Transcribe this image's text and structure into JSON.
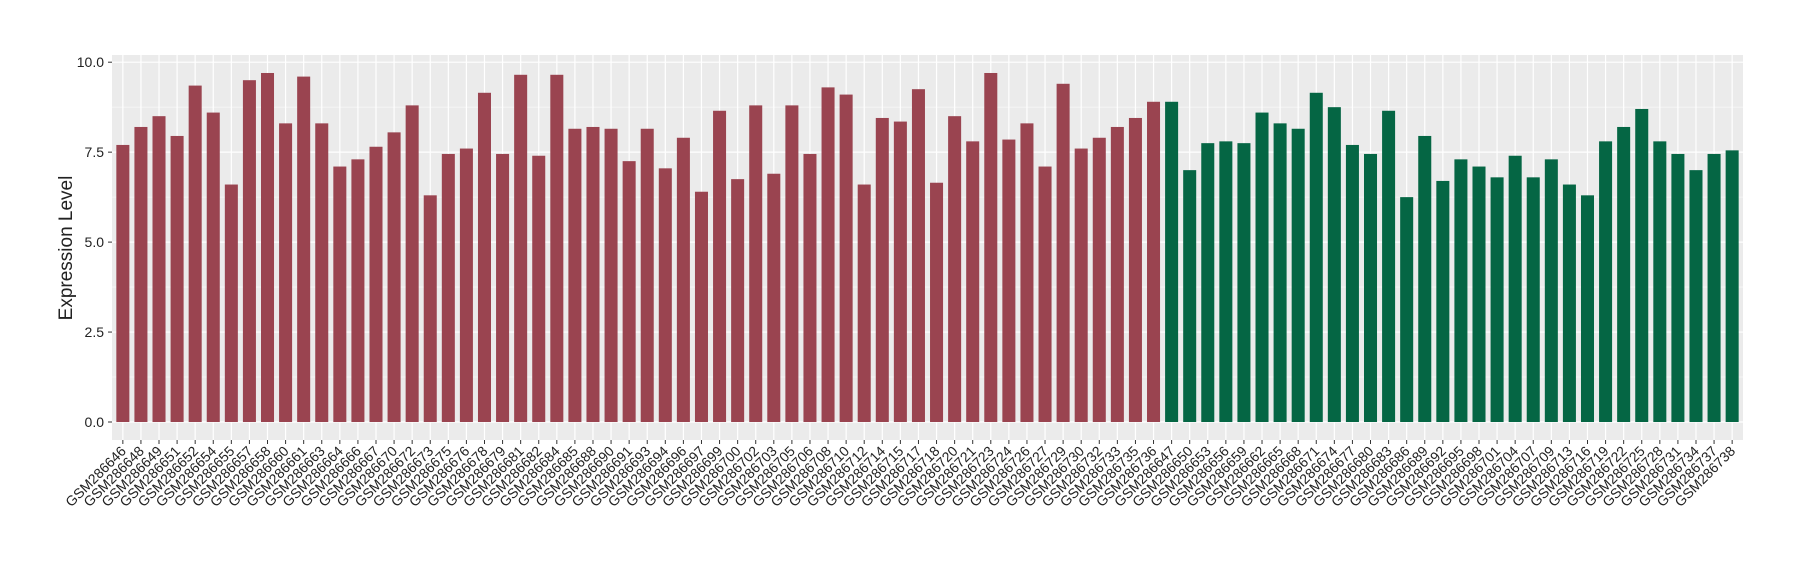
{
  "chart_data": {
    "type": "bar",
    "y_label": "Expression Level",
    "categories": [
      "GSM286646",
      "GSM286648",
      "GSM286649",
      "GSM286651",
      "GSM286652",
      "GSM286654",
      "GSM286655",
      "GSM286657",
      "GSM286658",
      "GSM286660",
      "GSM286661",
      "GSM286663",
      "GSM286664",
      "GSM286666",
      "GSM286667",
      "GSM286670",
      "GSM286672",
      "GSM286673",
      "GSM286675",
      "GSM286676",
      "GSM286678",
      "GSM286679",
      "GSM286681",
      "GSM286682",
      "GSM286684",
      "GSM286685",
      "GSM286688",
      "GSM286690",
      "GSM286691",
      "GSM286693",
      "GSM286694",
      "GSM286696",
      "GSM286697",
      "GSM286699",
      "GSM286700",
      "GSM286702",
      "GSM286703",
      "GSM286705",
      "GSM286706",
      "GSM286708",
      "GSM286710",
      "GSM286712",
      "GSM286714",
      "GSM286715",
      "GSM286717",
      "GSM286718",
      "GSM286720",
      "GSM286721",
      "GSM286723",
      "GSM286724",
      "GSM286726",
      "GSM286727",
      "GSM286729",
      "GSM286730",
      "GSM286732",
      "GSM286733",
      "GSM286735",
      "GSM286736",
      "GSM286647",
      "GSM286650",
      "GSM286653",
      "GSM286656",
      "GSM286659",
      "GSM286662",
      "GSM286665",
      "GSM286668",
      "GSM286671",
      "GSM286674",
      "GSM286677",
      "GSM286680",
      "GSM286683",
      "GSM286686",
      "GSM286689",
      "GSM286692",
      "GSM286695",
      "GSM286698",
      "GSM286701",
      "GSM286704",
      "GSM286707",
      "GSM286709",
      "GSM286713",
      "GSM286716",
      "GSM286719",
      "GSM286722",
      "GSM286725",
      "GSM286728",
      "GSM286731",
      "GSM286734",
      "GSM286737",
      "GSM286738"
    ],
    "values": [
      7.7,
      8.2,
      8.5,
      7.95,
      9.35,
      8.6,
      6.6,
      9.5,
      9.7,
      8.3,
      9.6,
      8.3,
      7.1,
      7.3,
      7.65,
      8.05,
      8.8,
      6.3,
      7.45,
      7.6,
      9.15,
      7.45,
      9.65,
      7.4,
      9.65,
      8.15,
      8.2,
      8.15,
      7.25,
      8.15,
      7.05,
      7.9,
      6.4,
      8.65,
      6.75,
      8.8,
      6.9,
      8.8,
      7.45,
      9.3,
      9.1,
      6.6,
      8.45,
      8.35,
      9.25,
      6.65,
      8.5,
      7.8,
      9.7,
      7.85,
      8.3,
      7.1,
      9.4,
      7.6,
      7.9,
      8.2,
      8.45,
      8.9,
      8.9,
      7.0,
      7.75,
      7.8,
      7.75,
      8.6,
      8.3,
      8.15,
      9.15,
      8.75,
      7.7,
      7.45,
      8.65,
      6.25,
      7.95,
      6.7,
      7.3,
      7.1,
      6.8,
      7.4,
      6.8,
      7.3,
      6.6,
      6.3,
      7.8,
      8.2,
      8.7,
      7.8,
      7.45,
      7.0,
      7.45,
      7.55
    ],
    "colors": [
      "#9a4450",
      "#9a4450",
      "#9a4450",
      "#9a4450",
      "#9a4450",
      "#9a4450",
      "#9a4450",
      "#9a4450",
      "#9a4450",
      "#9a4450",
      "#9a4450",
      "#9a4450",
      "#9a4450",
      "#9a4450",
      "#9a4450",
      "#9a4450",
      "#9a4450",
      "#9a4450",
      "#9a4450",
      "#9a4450",
      "#9a4450",
      "#9a4450",
      "#9a4450",
      "#9a4450",
      "#9a4450",
      "#9a4450",
      "#9a4450",
      "#9a4450",
      "#9a4450",
      "#9a4450",
      "#9a4450",
      "#9a4450",
      "#9a4450",
      "#9a4450",
      "#9a4450",
      "#9a4450",
      "#9a4450",
      "#9a4450",
      "#9a4450",
      "#9a4450",
      "#9a4450",
      "#9a4450",
      "#9a4450",
      "#9a4450",
      "#9a4450",
      "#9a4450",
      "#9a4450",
      "#9a4450",
      "#9a4450",
      "#9a4450",
      "#9a4450",
      "#9a4450",
      "#9a4450",
      "#9a4450",
      "#9a4450",
      "#9a4450",
      "#9a4450",
      "#9a4450",
      "#056644",
      "#056644",
      "#056644",
      "#056644",
      "#056644",
      "#056644",
      "#056644",
      "#056644",
      "#056644",
      "#056644",
      "#056644",
      "#056644",
      "#056644",
      "#056644",
      "#056644",
      "#056644",
      "#056644",
      "#056644",
      "#056644",
      "#056644",
      "#056644",
      "#056644",
      "#056644",
      "#056644",
      "#056644",
      "#056644",
      "#056644",
      "#056644",
      "#056644",
      "#056644",
      "#056644",
      "#056644"
    ],
    "ylim": [
      -0.5,
      10.2
    ],
    "yticks": [
      {
        "value": 0,
        "label": "0.0"
      },
      2.5,
      {
        "value": 5,
        "label": "5.0"
      },
      7.5,
      {
        "value": 10,
        "label": "10.0"
      }
    ],
    "grid": true
  }
}
